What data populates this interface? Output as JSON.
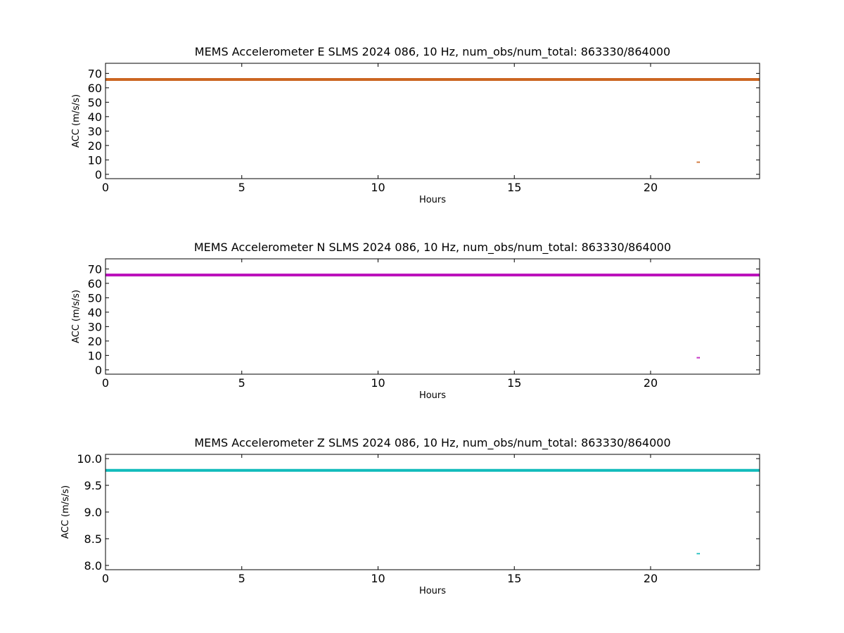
{
  "chart_data": [
    {
      "type": "line",
      "title": "MEMS Accelerometer E SLMS 2024 086, 10 Hz, num_obs/num_total: 863330/864000",
      "xlabel": "Hours",
      "ylabel": "ACC (m/s/s)",
      "xlim": [
        0,
        24
      ],
      "ylim": [
        -3,
        77
      ],
      "xticks": [
        0,
        5,
        10,
        15,
        20
      ],
      "yticks": [
        0,
        10,
        20,
        30,
        40,
        50,
        60,
        70
      ],
      "grid": false,
      "color": "#cc6622",
      "series": [
        {
          "x": [
            0,
            24
          ],
          "y": [
            65.8,
            65.8
          ]
        }
      ],
      "outliers": {
        "x": [
          21.72,
          21.78
        ],
        "y": [
          8.4,
          8.4
        ]
      }
    },
    {
      "type": "line",
      "title": "MEMS Accelerometer N SLMS 2024 086, 10 Hz, num_obs/num_total: 863330/864000",
      "xlabel": "Hours",
      "ylabel": "ACC (m/s/s)",
      "xlim": [
        0,
        24
      ],
      "ylim": [
        -3,
        77
      ],
      "xticks": [
        0,
        5,
        10,
        15,
        20
      ],
      "yticks": [
        0,
        10,
        20,
        30,
        40,
        50,
        60,
        70
      ],
      "grid": false,
      "color": "#bb11bb",
      "series": [
        {
          "x": [
            0,
            24
          ],
          "y": [
            65.8,
            65.8
          ]
        }
      ],
      "outliers": {
        "x": [
          21.72,
          21.78
        ],
        "y": [
          8.4,
          8.4
        ]
      }
    },
    {
      "type": "line",
      "title": "MEMS Accelerometer Z SLMS 2024 086, 10 Hz, num_obs/num_total: 863330/864000",
      "xlabel": "Hours",
      "ylabel": "ACC (m/s/s)",
      "xlim": [
        0,
        24
      ],
      "ylim": [
        7.92,
        10.08
      ],
      "xticks": [
        0,
        5,
        10,
        15,
        20
      ],
      "yticks": [
        8.0,
        8.5,
        9.0,
        9.5,
        10.0
      ],
      "ytick_labels": [
        "8.0",
        "8.5",
        "9.0",
        "9.5",
        "10.0"
      ],
      "grid": false,
      "color": "#11bbbb",
      "series": [
        {
          "x": [
            0,
            24
          ],
          "y": [
            9.78,
            9.78
          ]
        }
      ],
      "outliers": {
        "x": [
          21.72,
          21.78
        ],
        "y": [
          8.22,
          8.22
        ]
      }
    }
  ]
}
